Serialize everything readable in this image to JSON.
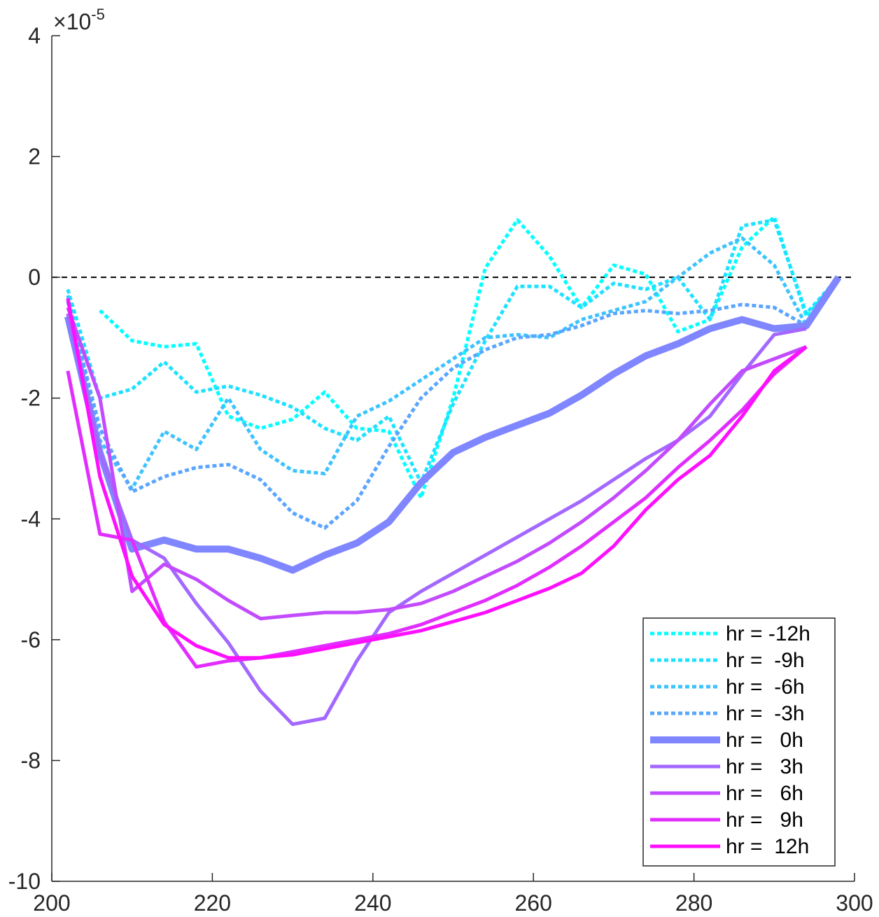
{
  "chart_data": {
    "type": "line",
    "title": "",
    "xlabel": "",
    "ylabel": "",
    "xlim": [
      200,
      300
    ],
    "ylim": [
      -10,
      4
    ],
    "y_scale_exponent": -5,
    "y_scale_label": {
      "base": "×10",
      "exponent": "-5"
    },
    "xticks": [
      "200",
      "220",
      "240",
      "260",
      "280",
      "300"
    ],
    "xtick_values": [
      200,
      220,
      240,
      260,
      280,
      300
    ],
    "yticks": [
      "4",
      "2",
      "0",
      "-2",
      "-4",
      "-6",
      "-8",
      "-10"
    ],
    "ytick_values": [
      4,
      2,
      0,
      -2,
      -4,
      -6,
      -8,
      -10
    ],
    "reference_line": {
      "y": 0,
      "style": "dashed",
      "color": "#000000"
    },
    "legend_position": "bottom-right",
    "series": [
      {
        "name": "hr = -12h",
        "color": "#00ffff",
        "style": "dotted",
        "width": "normal",
        "x": [
          206,
          210,
          214,
          218,
          222,
          226,
          230,
          234,
          238,
          242,
          246,
          250,
          254,
          258,
          262,
          266,
          270,
          274,
          278,
          282,
          286,
          290,
          294,
          298
        ],
        "y": [
          -0.55,
          -1.05,
          -1.15,
          -1.1,
          -2.3,
          -2.5,
          -2.35,
          -1.9,
          -2.5,
          -2.55,
          -3.65,
          -2.0,
          0.15,
          0.95,
          0.35,
          -0.5,
          0.2,
          0.05,
          -0.9,
          -0.7,
          0.5,
          1.0,
          -0.65,
          0.0
        ]
      },
      {
        "name": "hr =  -9h",
        "color": "#1ee1ff",
        "style": "dotted",
        "width": "normal",
        "x": [
          202,
          206,
          210,
          214,
          218,
          222,
          226,
          230,
          234,
          238,
          242,
          246,
          250,
          254,
          258,
          262,
          266,
          270,
          274,
          278,
          282,
          286,
          290,
          294,
          298
        ],
        "y": [
          -0.2,
          -2.0,
          -1.85,
          -1.4,
          -1.9,
          -1.8,
          -1.95,
          -2.15,
          -2.5,
          -2.7,
          -2.3,
          -3.4,
          -2.1,
          -1.05,
          -0.15,
          -0.15,
          -0.5,
          -0.1,
          -0.2,
          0.0,
          -0.7,
          0.85,
          0.95,
          -0.6,
          0.0
        ]
      },
      {
        "name": "hr =  -6h",
        "color": "#3cc3ff",
        "style": "dotted",
        "width": "normal",
        "x": [
          202,
          206,
          210,
          214,
          218,
          222,
          226,
          230,
          234,
          238,
          242,
          246,
          250,
          254,
          258,
          262,
          266,
          270,
          274,
          278,
          282,
          286,
          290,
          294,
          298
        ],
        "y": [
          -0.3,
          -2.7,
          -3.5,
          -2.55,
          -2.85,
          -2.0,
          -2.85,
          -3.2,
          -3.25,
          -2.3,
          -2.05,
          -1.7,
          -1.35,
          -1.0,
          -0.95,
          -1.0,
          -0.7,
          -0.55,
          -0.4,
          0.0,
          0.4,
          0.65,
          0.2,
          -0.8,
          0.0
        ]
      },
      {
        "name": "hr =  -3h",
        "color": "#5aa5ff",
        "style": "dotted",
        "width": "normal",
        "x": [
          202,
          206,
          210,
          214,
          218,
          222,
          226,
          230,
          234,
          238,
          242,
          246,
          250,
          254,
          258,
          262,
          266,
          270,
          274,
          278,
          282,
          286,
          290,
          294,
          298
        ],
        "y": [
          -0.4,
          -2.5,
          -3.55,
          -3.3,
          -3.15,
          -3.1,
          -3.35,
          -3.9,
          -4.15,
          -3.7,
          -2.8,
          -2.0,
          -1.5,
          -1.2,
          -1.0,
          -0.95,
          -0.8,
          -0.6,
          -0.55,
          -0.6,
          -0.55,
          -0.45,
          -0.5,
          -0.8,
          0.0
        ]
      },
      {
        "name": "hr =   0h",
        "color": "#7f86ff",
        "style": "solid",
        "width": "thick",
        "x": [
          202,
          206,
          210,
          214,
          218,
          222,
          226,
          230,
          234,
          238,
          242,
          246,
          250,
          254,
          258,
          262,
          266,
          270,
          274,
          278,
          282,
          286,
          290,
          294,
          298
        ],
        "y": [
          -0.65,
          -2.9,
          -4.5,
          -4.35,
          -4.5,
          -4.5,
          -4.65,
          -4.85,
          -4.6,
          -4.4,
          -4.05,
          -3.4,
          -2.9,
          -2.65,
          -2.45,
          -2.25,
          -1.95,
          -1.6,
          -1.3,
          -1.1,
          -0.85,
          -0.7,
          -0.85,
          -0.8,
          0.0
        ]
      },
      {
        "name": "hr =   3h",
        "color": "#a368ff",
        "style": "solid",
        "width": "normal",
        "x": [
          202,
          206,
          210,
          214,
          218,
          222,
          226,
          230,
          234,
          238,
          242,
          246,
          250,
          254,
          258,
          262,
          266,
          270,
          274,
          278,
          282,
          286,
          290,
          294
        ],
        "y": [
          -0.6,
          -2.9,
          -4.35,
          -4.65,
          -5.4,
          -6.05,
          -6.85,
          -7.4,
          -7.3,
          -6.35,
          -5.55,
          -5.2,
          -4.9,
          -4.6,
          -4.3,
          -4.0,
          -3.7,
          -3.35,
          -3.0,
          -2.7,
          -2.3,
          -1.6,
          -0.95,
          -0.85
        ]
      },
      {
        "name": "hr =   6h",
        "color": "#c24bff",
        "style": "solid",
        "width": "normal",
        "x": [
          202,
          206,
          210,
          214,
          218,
          222,
          226,
          230,
          234,
          238,
          242,
          246,
          250,
          254,
          258,
          262,
          266,
          270,
          274,
          278,
          282,
          286,
          290,
          294
        ],
        "y": [
          -0.5,
          -2.0,
          -5.2,
          -4.75,
          -5.0,
          -5.35,
          -5.65,
          -5.6,
          -5.55,
          -5.55,
          -5.5,
          -5.4,
          -5.2,
          -4.95,
          -4.7,
          -4.4,
          -4.05,
          -3.65,
          -3.2,
          -2.7,
          -2.1,
          -1.55,
          -1.35,
          -1.15
        ]
      },
      {
        "name": "hr =   9h",
        "color": "#e12dff",
        "style": "solid",
        "width": "normal",
        "x": [
          202,
          206,
          210,
          214,
          218,
          222,
          226,
          230,
          234,
          238,
          242,
          246,
          250,
          254,
          258,
          262,
          266,
          270,
          274,
          278,
          282,
          286,
          290,
          294
        ],
        "y": [
          -1.55,
          -4.25,
          -4.35,
          -5.7,
          -6.45,
          -6.35,
          -6.3,
          -6.2,
          -6.1,
          -6.0,
          -5.9,
          -5.75,
          -5.55,
          -5.35,
          -5.1,
          -4.8,
          -4.45,
          -4.05,
          -3.65,
          -3.15,
          -2.7,
          -2.2,
          -1.6,
          -1.15
        ]
      },
      {
        "name": "hr =  12h",
        "color": "#ff0fff",
        "style": "solid",
        "width": "normal",
        "x": [
          202,
          206,
          210,
          214,
          218,
          222,
          226,
          230,
          234,
          238,
          242,
          246,
          250,
          254,
          258,
          262,
          266,
          270,
          274,
          278,
          282,
          286,
          290,
          294
        ],
        "y": [
          -0.35,
          -3.3,
          -4.95,
          -5.75,
          -6.1,
          -6.3,
          -6.3,
          -6.25,
          -6.15,
          -6.05,
          -5.95,
          -5.85,
          -5.7,
          -5.55,
          -5.35,
          -5.15,
          -4.9,
          -4.45,
          -3.85,
          -3.35,
          -2.95,
          -2.3,
          -1.55,
          -1.15
        ]
      }
    ]
  }
}
